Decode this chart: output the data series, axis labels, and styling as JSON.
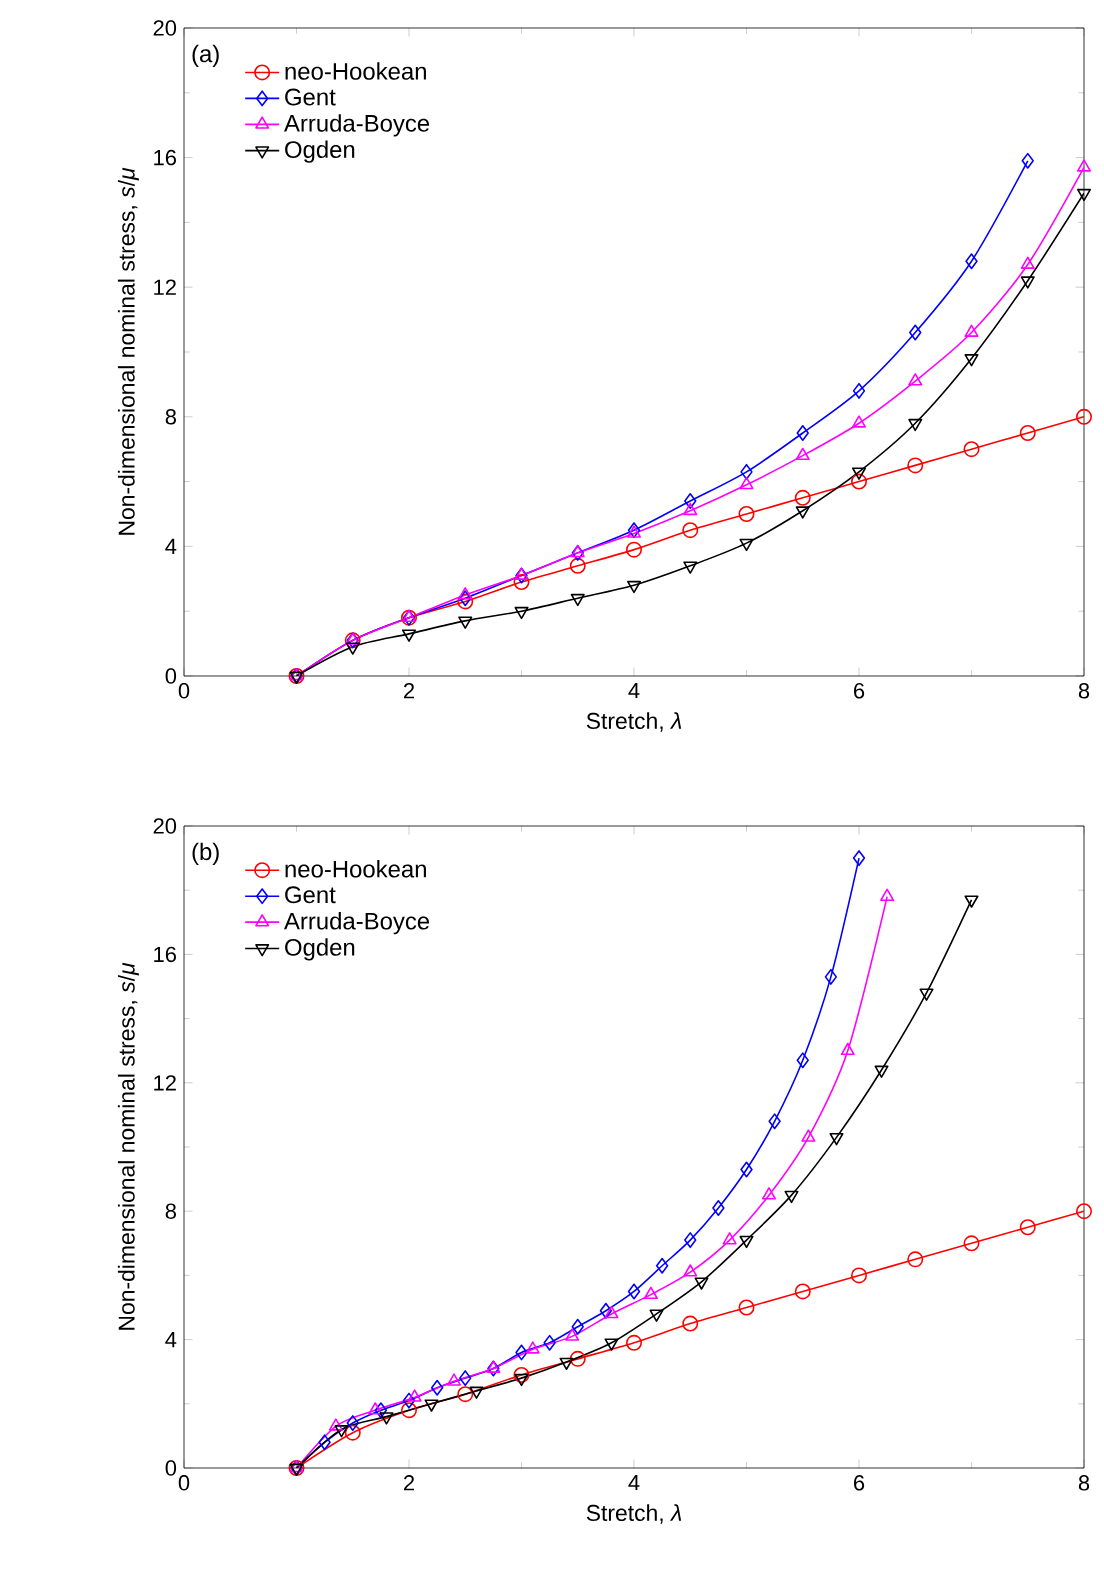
{
  "chart_data": [
    {
      "type": "line",
      "title": "(a)",
      "xlabel": "Stretch, *λ*",
      "ylabel": "Non-dimensional nominal stress, *s*/*μ*",
      "xlim": [
        0,
        8
      ],
      "ylim": [
        0,
        20
      ],
      "xticks": [
        0,
        2,
        4,
        6,
        8
      ],
      "yticks": [
        0,
        4,
        8,
        12,
        16,
        20
      ],
      "legend": "top left",
      "line_style": "solid",
      "series": [
        {
          "name": "neo-Hookean",
          "color": "#ff0000",
          "marker": "circle",
          "x": [
            1,
            1.5,
            2,
            2.5,
            3,
            3.5,
            4,
            4.5,
            5,
            5.5,
            6,
            6.5,
            7,
            7.5,
            8
          ],
          "values": [
            0,
            1.1,
            1.8,
            2.3,
            2.9,
            3.4,
            3.9,
            4.5,
            5.0,
            5.5,
            6.0,
            6.5,
            7.0,
            7.5,
            8.0
          ]
        },
        {
          "name": "Gent",
          "color": "#0000ff",
          "marker": "diamond",
          "x": [
            1,
            1.5,
            2,
            2.5,
            3,
            3.5,
            4,
            4.5,
            5,
            5.5,
            6,
            6.5,
            7,
            7.5
          ],
          "values": [
            0,
            1.1,
            1.8,
            2.4,
            3.1,
            3.8,
            4.5,
            5.4,
            6.3,
            7.5,
            8.8,
            10.6,
            12.8,
            15.9
          ]
        },
        {
          "name": "Arruda-Boyce",
          "color": "#ff00ff",
          "marker": "triangle",
          "x": [
            1,
            1.5,
            2,
            2.5,
            3,
            3.5,
            4,
            4.5,
            5,
            5.5,
            6,
            6.5,
            7,
            7.5,
            8
          ],
          "values": [
            0,
            1.1,
            1.8,
            2.5,
            3.1,
            3.8,
            4.4,
            5.1,
            5.9,
            6.8,
            7.8,
            9.1,
            10.6,
            12.7,
            15.7
          ]
        },
        {
          "name": "Ogden",
          "color": "#000000",
          "marker": "triangle_down",
          "x": [
            1,
            1.5,
            2,
            2.5,
            3,
            3.5,
            4,
            4.5,
            5,
            5.5,
            6,
            6.5,
            7,
            7.5,
            8
          ],
          "values": [
            0,
            0.9,
            1.3,
            1.7,
            2.0,
            2.4,
            2.8,
            3.4,
            4.1,
            5.1,
            6.3,
            7.8,
            9.8,
            12.2,
            14.9
          ]
        }
      ]
    },
    {
      "type": "line",
      "title": "(b)",
      "xlabel": "Stretch, *λ*",
      "ylabel": "Non-dimensional nominal stress, *s*/*μ*",
      "xlim": [
        0,
        8
      ],
      "ylim": [
        0,
        20
      ],
      "xticks": [
        0,
        2,
        4,
        6,
        8
      ],
      "yticks": [
        0,
        4,
        8,
        12,
        16,
        20
      ],
      "legend": "top left",
      "line_style": "solid",
      "series": [
        {
          "name": "neo-Hookean",
          "color": "#ff0000",
          "marker": "circle",
          "x": [
            1,
            1.5,
            2,
            2.5,
            3,
            3.5,
            4,
            4.5,
            5,
            5.5,
            6,
            6.5,
            7,
            7.5,
            8
          ],
          "values": [
            0,
            1.1,
            1.8,
            2.3,
            2.9,
            3.4,
            3.9,
            4.5,
            5.0,
            5.5,
            6.0,
            6.5,
            7.0,
            7.5,
            8.0
          ]
        },
        {
          "name": "Gent",
          "color": "#0000ff",
          "marker": "diamond",
          "x": [
            1,
            1.25,
            1.5,
            1.75,
            2,
            2.25,
            2.5,
            2.75,
            3,
            3.25,
            3.5,
            3.75,
            4,
            4.25,
            4.5,
            4.75,
            5,
            5.25,
            5.5,
            5.75,
            6
          ],
          "values": [
            0,
            0.8,
            1.4,
            1.8,
            2.1,
            2.5,
            2.8,
            3.1,
            3.6,
            3.9,
            4.4,
            4.9,
            5.5,
            6.3,
            7.1,
            8.1,
            9.3,
            10.8,
            12.7,
            15.3,
            19.0
          ]
        },
        {
          "name": "Arruda-Boyce",
          "color": "#ff00ff",
          "marker": "triangle",
          "x": [
            1,
            1.35,
            1.7,
            2.05,
            2.4,
            2.75,
            3.1,
            3.45,
            3.8,
            4.15,
            4.5,
            4.85,
            5.2,
            5.55,
            5.9,
            6.25
          ],
          "values": [
            0,
            1.3,
            1.8,
            2.2,
            2.7,
            3.1,
            3.7,
            4.1,
            4.8,
            5.4,
            6.1,
            7.1,
            8.5,
            10.3,
            13.0,
            17.8
          ]
        },
        {
          "name": "Ogden",
          "color": "#000000",
          "marker": "triangle_down",
          "x": [
            1,
            1.4,
            1.8,
            2.2,
            2.6,
            3.0,
            3.4,
            3.8,
            4.2,
            4.6,
            5.0,
            5.4,
            5.8,
            6.2,
            6.6,
            7.0
          ],
          "values": [
            0,
            1.2,
            1.6,
            2.0,
            2.4,
            2.8,
            3.3,
            3.9,
            4.8,
            5.8,
            7.1,
            8.5,
            10.3,
            12.4,
            14.8,
            17.7
          ]
        }
      ]
    }
  ]
}
